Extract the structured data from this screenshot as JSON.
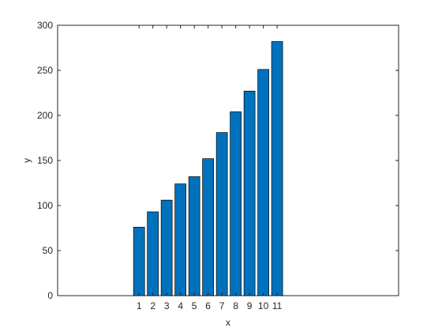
{
  "chart_data": {
    "type": "bar",
    "x": [
      1,
      2,
      3,
      4,
      5,
      6,
      7,
      8,
      9,
      10,
      11
    ],
    "values": [
      76,
      93,
      106,
      124,
      132,
      152,
      181,
      204,
      227,
      251,
      282
    ],
    "color": "#0072bd",
    "xlabel": "x",
    "ylabel": "y",
    "xlim": [
      -4.9,
      19.8
    ],
    "xticks": [
      1,
      2,
      3,
      4,
      5,
      6,
      7,
      8,
      9,
      10,
      11
    ],
    "ylim": [
      0,
      300
    ],
    "yticks": [
      0,
      50,
      100,
      150,
      200,
      250,
      300
    ],
    "grid": false
  }
}
